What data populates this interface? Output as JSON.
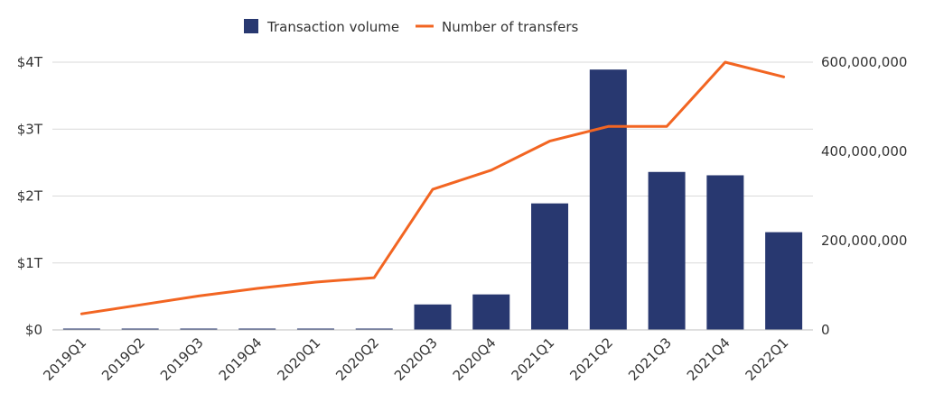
{
  "chart_data": {
    "type": "bar",
    "categories": [
      "2019Q1",
      "2019Q2",
      "2019Q3",
      "2019Q4",
      "2020Q1",
      "2020Q2",
      "2020Q3",
      "2020Q4",
      "2021Q1",
      "2021Q2",
      "2021Q3",
      "2021Q4",
      "2022Q1"
    ],
    "series": [
      {
        "name": "Transaction volume",
        "type": "bar",
        "axis": "left",
        "color": "#283870",
        "values": [
          0.0,
          0.0,
          0.02,
          0.0,
          0.02,
          0.02,
          0.38,
          0.53,
          1.89,
          3.89,
          2.36,
          2.31,
          1.46
        ]
      },
      {
        "name": "Number of transfers",
        "type": "line",
        "axis": "right",
        "color": "#f26522",
        "values": [
          36000000,
          56000000,
          76000000,
          93000000,
          107000000,
          117000000,
          315000000,
          358000000,
          423000000,
          456000000,
          456000000,
          600000000,
          567000000
        ]
      }
    ],
    "y_left": {
      "ylim": [
        0,
        4
      ],
      "ticks": [
        0,
        1,
        2,
        3,
        4
      ],
      "tick_labels": [
        "$0",
        "$1T",
        "$2T",
        "$3T",
        "$4T"
      ]
    },
    "y_right": {
      "ylim": [
        0,
        600000000
      ],
      "ticks": [
        0,
        200000000,
        400000000,
        600000000
      ],
      "tick_labels": [
        "0",
        "200,000,000",
        "400,000,000",
        "600,000,000"
      ]
    },
    "grid": true,
    "legend": "top-center"
  }
}
